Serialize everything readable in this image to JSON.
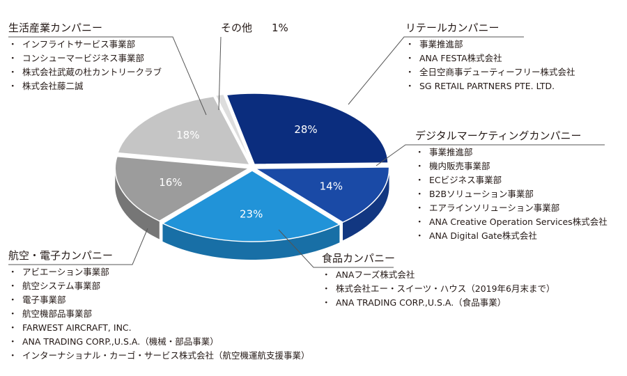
{
  "chart_data": {
    "type": "pie",
    "style": "3d-exploded",
    "slices": [
      {
        "label": "リテールカンパニー",
        "value": 28,
        "value_label": "28%",
        "color": "#0b2d7e",
        "side": "#081f5c"
      },
      {
        "label": "デジタルマーケティングカンパニー",
        "value": 14,
        "value_label": "14%",
        "color": "#1a4aa6",
        "side": "#123781"
      },
      {
        "label": "食品カンパニー",
        "value": 23,
        "value_label": "23%",
        "color": "#2193d8",
        "side": "#186fa6"
      },
      {
        "label": "航空・電子カンパニー",
        "value": 16,
        "value_label": "16%",
        "color": "#9c9c9c",
        "side": "#767676"
      },
      {
        "label": "生活産業カンパニー",
        "value": 18,
        "value_label": "18%",
        "color": "#c5c5c5",
        "side": "#9a9a9a"
      },
      {
        "label": "その他",
        "value": 1,
        "value_label": "1%",
        "color": "#dddddd",
        "side": "#b0b0b0"
      }
    ]
  },
  "groups": {
    "seikatsu": {
      "title": "生活産業カンパニー",
      "items": [
        "インフライトサービス事業部",
        "コンシューマービジネス事業部",
        "株式会社武蔵の杜カントリークラブ",
        "株式会社藤二誠"
      ]
    },
    "sonota": {
      "title": "その他",
      "pct": "1%"
    },
    "retail": {
      "title": "リテールカンパニー",
      "items": [
        "事業推進部",
        "ANA FESTA株式会社",
        "全日空商事デューティーフリー株式会社",
        "SG RETAIL PARTNERS PTE. LTD."
      ]
    },
    "digital": {
      "title": "デジタルマーケティングカンパニー",
      "items": [
        "事業推進部",
        "機内販売事業部",
        "ECビジネス事業部",
        "B2Bソリューション事業部",
        "エアラインソリューション事業部",
        "ANA Creative Operation Services株式会社",
        "ANA Digital Gate株式会社"
      ]
    },
    "shokuhin": {
      "title": "食品カンパニー",
      "items": [
        "ANAフーズ株式会社",
        "株式会社エー・スイーツ・ハウス（2019年6月末まで）",
        "ANA TRADING CORP.,U.S.A.（食品事業）"
      ]
    },
    "koku": {
      "title": "航空・電子カンパニー",
      "items": [
        "アビエーション事業部",
        "航空システム事業部",
        "電子事業部",
        "航空機部品事業部",
        "FARWEST AIRCRAFT, INC.",
        "ANA TRADING CORP.,U.S.A.（機械・部品事業）",
        "インターナショナル・カーゴ・サービス株式会社（航空機運航支援事業）"
      ]
    }
  }
}
